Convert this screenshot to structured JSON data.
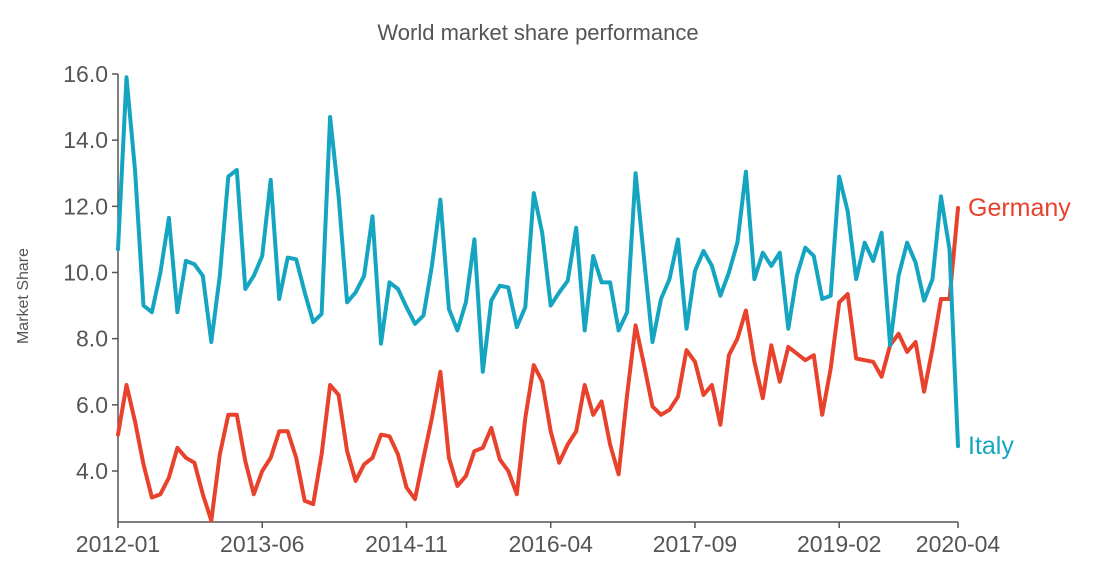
{
  "chart_data": {
    "type": "line",
    "title": "World market share performance",
    "xlabel": "",
    "ylabel": "Market Share",
    "ylim": [
      2.6,
      16.2
    ],
    "y_ticks": [
      "4.0",
      "6.0",
      "8.0",
      "10.0",
      "12.0",
      "14.0",
      "16.0"
    ],
    "x_ticks": [
      "2012-01",
      "2013-06",
      "2014-11",
      "2016-04",
      "2017-09",
      "2019-02",
      "2020-04"
    ],
    "x": [
      "2012-01",
      "2012-02",
      "2012-03",
      "2012-04",
      "2012-05",
      "2012-06",
      "2012-07",
      "2012-08",
      "2012-09",
      "2012-10",
      "2012-11",
      "2012-12",
      "2013-01",
      "2013-02",
      "2013-03",
      "2013-04",
      "2013-05",
      "2013-06",
      "2013-07",
      "2013-08",
      "2013-09",
      "2013-10",
      "2013-11",
      "2013-12",
      "2014-01",
      "2014-02",
      "2014-03",
      "2014-04",
      "2014-05",
      "2014-06",
      "2014-07",
      "2014-08",
      "2014-09",
      "2014-10",
      "2014-11",
      "2014-12",
      "2015-01",
      "2015-02",
      "2015-03",
      "2015-04",
      "2015-05",
      "2015-06",
      "2015-07",
      "2015-08",
      "2015-09",
      "2015-10",
      "2015-11",
      "2015-12",
      "2016-01",
      "2016-02",
      "2016-03",
      "2016-04",
      "2016-05",
      "2016-06",
      "2016-07",
      "2016-08",
      "2016-09",
      "2016-10",
      "2016-11",
      "2016-12",
      "2017-01",
      "2017-02",
      "2017-03",
      "2017-04",
      "2017-05",
      "2017-06",
      "2017-07",
      "2017-08",
      "2017-09",
      "2017-10",
      "2017-11",
      "2017-12",
      "2018-01",
      "2018-02",
      "2018-03",
      "2018-04",
      "2018-05",
      "2018-06",
      "2018-07",
      "2018-08",
      "2018-09",
      "2018-10",
      "2018-11",
      "2018-12",
      "2019-01",
      "2019-02",
      "2019-03",
      "2019-04",
      "2019-05",
      "2019-06",
      "2019-07",
      "2019-08",
      "2019-09",
      "2019-10",
      "2019-11",
      "2019-12",
      "2020-01",
      "2020-02",
      "2020-03",
      "2020-04"
    ],
    "series": [
      {
        "name": "Germany",
        "color": "#e8412c",
        "values": [
          5.1,
          6.6,
          5.5,
          4.2,
          3.2,
          3.3,
          3.8,
          4.7,
          4.4,
          4.25,
          3.3,
          2.5,
          4.5,
          5.7,
          5.7,
          4.3,
          3.3,
          4.0,
          4.4,
          5.2,
          5.2,
          4.4,
          3.1,
          3.0,
          4.5,
          6.6,
          6.3,
          4.6,
          3.7,
          4.2,
          4.4,
          5.1,
          5.05,
          4.5,
          3.5,
          3.15,
          4.4,
          5.6,
          7.0,
          4.4,
          3.55,
          3.85,
          4.6,
          4.7,
          5.3,
          4.35,
          4.0,
          3.3,
          5.6,
          7.2,
          6.7,
          5.2,
          4.25,
          4.8,
          5.2,
          6.6,
          5.7,
          6.1,
          4.8,
          3.9,
          6.3,
          8.4,
          7.2,
          5.95,
          5.7,
          5.85,
          6.25,
          7.65,
          7.3,
          6.3,
          6.6,
          5.4,
          7.5,
          8.0,
          8.85,
          7.3,
          6.2,
          7.8,
          6.7,
          7.75,
          7.55,
          7.35,
          7.5,
          5.7,
          7.1,
          9.1,
          9.35,
          7.4,
          7.35,
          7.3,
          6.85,
          7.8,
          8.15,
          7.6,
          7.9,
          6.4,
          7.7,
          9.2,
          9.2,
          11.95
        ]
      },
      {
        "name": "Italy",
        "color": "#15a5c1",
        "values": [
          10.7,
          15.9,
          13.1,
          9.0,
          8.8,
          10.0,
          11.65,
          8.8,
          10.35,
          10.25,
          9.9,
          7.9,
          9.9,
          12.9,
          13.1,
          9.5,
          9.9,
          10.5,
          12.8,
          9.2,
          10.45,
          10.4,
          9.4,
          8.5,
          8.75,
          14.7,
          12.3,
          9.1,
          9.4,
          9.9,
          11.7,
          7.85,
          9.7,
          9.5,
          8.95,
          8.45,
          8.7,
          10.2,
          12.2,
          8.9,
          8.25,
          9.1,
          11.0,
          7.0,
          9.15,
          9.6,
          9.55,
          8.35,
          8.95,
          12.4,
          11.2,
          9.0,
          9.4,
          9.75,
          11.35,
          8.25,
          10.5,
          9.7,
          9.7,
          8.25,
          8.8,
          13.0,
          10.4,
          7.9,
          9.2,
          9.8,
          11.0,
          8.3,
          10.05,
          10.65,
          10.2,
          9.3,
          10.0,
          10.9,
          13.05,
          9.8,
          10.6,
          10.2,
          10.6,
          8.3,
          9.9,
          10.75,
          10.5,
          9.2,
          9.3,
          12.9,
          11.85,
          9.8,
          10.9,
          10.35,
          11.2,
          7.8,
          9.9,
          10.9,
          10.3,
          9.15,
          9.8,
          12.3,
          10.7,
          4.75
        ]
      }
    ],
    "grid": false,
    "legend": "end-of-line labels"
  }
}
